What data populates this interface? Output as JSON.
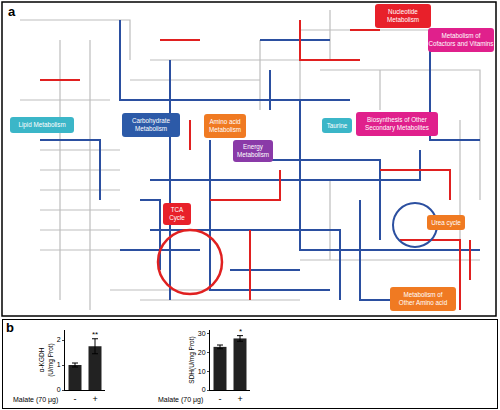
{
  "panel_a": {
    "label": "a",
    "boxes": [
      {
        "lines": [
          "Nucleotide",
          "Metabolism"
        ],
        "color": "#e8202a"
      },
      {
        "lines": [
          "Metabolism of",
          "Cofactors and Vitamins"
        ],
        "color": "#e0208c"
      },
      {
        "lines": [
          "Lipid Metabolism"
        ],
        "color": "#3bb6c8"
      },
      {
        "lines": [
          "Carbohydrate",
          "Metabolism"
        ],
        "color": "#2c5aa8"
      },
      {
        "lines": [
          "Amino acid",
          "Metabolism"
        ],
        "color": "#f07a22"
      },
      {
        "lines": [
          "Energy",
          "Metabolism"
        ],
        "color": "#8a3aa8"
      },
      {
        "lines": [
          "Taurine"
        ],
        "color": "#3bb6c8"
      },
      {
        "lines": [
          "Biosynthesis of Other",
          "Secondary Metabolites"
        ],
        "color": "#e0208c"
      },
      {
        "lines": [
          "TCA",
          "Cycle"
        ],
        "color": "#e8202a"
      },
      {
        "lines": [
          "Urea cycle"
        ],
        "color": "#f07a22"
      },
      {
        "lines": [
          "Metabolism of",
          "Other Amino acid"
        ],
        "color": "#f07a22"
      }
    ]
  },
  "panel_b": {
    "label": "b"
  },
  "chart_data": [
    {
      "type": "bar",
      "categories": [
        "-",
        "+"
      ],
      "values": [
        1.0,
        1.75
      ],
      "errors": [
        0.08,
        0.3
      ],
      "color": "#222222",
      "y_title_lines": [
        "α-KGDH",
        "(U/mg Prot)"
      ],
      "xlabel": "Malate (70 μg)",
      "ylim": [
        0,
        2.4
      ],
      "yticks": [
        0,
        1,
        2
      ],
      "significance": [
        null,
        "**"
      ]
    },
    {
      "type": "bar",
      "categories": [
        "-",
        "+"
      ],
      "values": [
        23,
        27.5
      ],
      "errors": [
        1,
        1.5
      ],
      "color": "#222222",
      "y_title_lines": [
        "SDH(U/mg Prot)"
      ],
      "xlabel": "Malate (70 μg)",
      "ylim": [
        0,
        32
      ],
      "yticks": [
        0,
        10,
        20,
        30
      ],
      "significance": [
        null,
        "*"
      ]
    }
  ]
}
